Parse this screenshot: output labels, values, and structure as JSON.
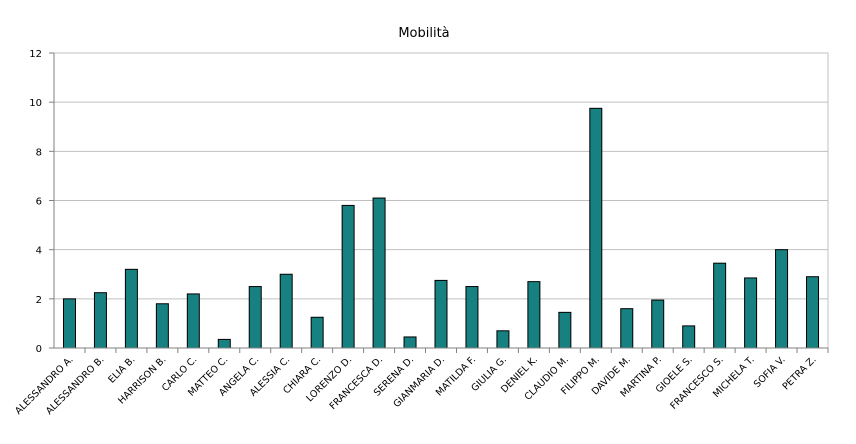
{
  "chart_data": {
    "type": "bar",
    "title": "Mobilità",
    "xlabel": "",
    "ylabel": "",
    "ylim": [
      0,
      12
    ],
    "yticks": [
      0,
      2,
      4,
      6,
      8,
      10,
      12
    ],
    "grid": true,
    "bar_color": "#178080",
    "categories": [
      "ALESSANDRO A.",
      "ALESSANDRO B.",
      "ELIA B.",
      "HARRISON B.",
      "CARLO C.",
      "MATTEO C.",
      "ANGELA C.",
      "ALESSIA C.",
      "CHIARA C.",
      "LORENZO D.",
      "FRANCESCA D.",
      "SERENA D.",
      "GIANMARIA D.",
      "MATILDA F.",
      "GIULIA G.",
      "DENIEL K.",
      "CLAUDIO M.",
      "FILIPPO M.",
      "DAVIDE M.",
      "MARTINA P.",
      "GIOELE S.",
      "FRANCESCO S.",
      "MICHELA T.",
      "SOFIA V.",
      "PETRA Z."
    ],
    "values": [
      2.0,
      2.25,
      3.2,
      1.8,
      2.2,
      0.35,
      2.5,
      3.0,
      1.25,
      5.8,
      6.1,
      0.45,
      2.75,
      2.5,
      0.7,
      2.7,
      1.45,
      9.75,
      1.6,
      1.95,
      0.9,
      3.45,
      2.85,
      4.0,
      2.9
    ]
  }
}
